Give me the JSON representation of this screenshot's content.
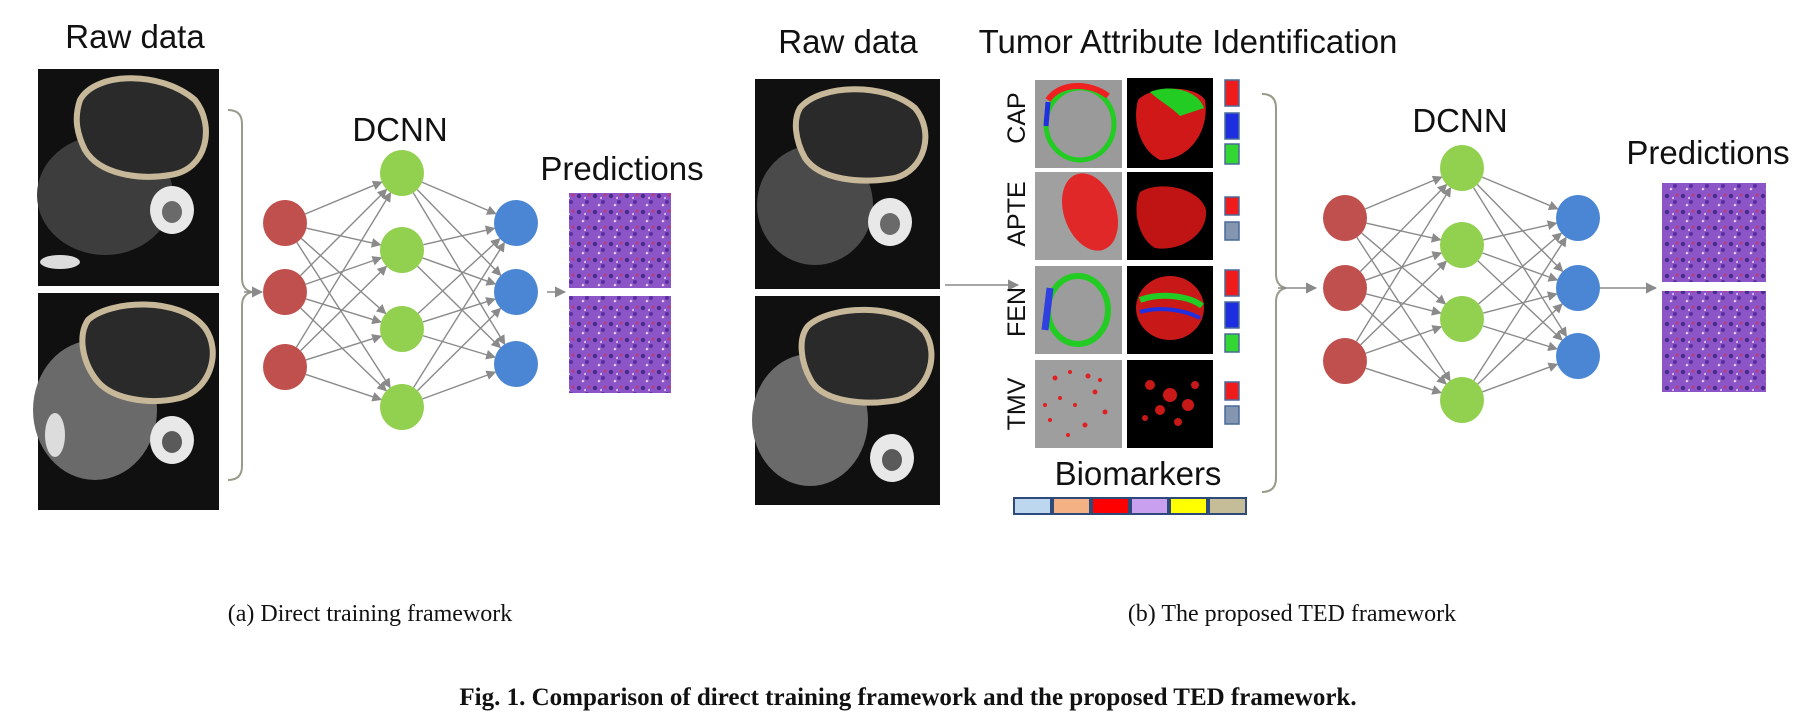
{
  "panel_a": {
    "raw_title": "Raw data",
    "dcnn_title": "DCNN",
    "pred_title": "Predictions",
    "caption": "(a)  Direct training framework"
  },
  "panel_b": {
    "raw_title": "Raw data",
    "attr_title": "Tumor Attribute Identification",
    "dcnn_title": "DCNN",
    "pred_title": "Predictions",
    "biomarkers_title": "Biomarkers",
    "caption": "(b)  The proposed TED framework",
    "attributes": [
      {
        "label": "CAP",
        "codes": [
          "+++",
          "++",
          "+"
        ]
      },
      {
        "label": "APTE",
        "codes": [
          "+",
          "-"
        ]
      },
      {
        "label": "FEN",
        "codes": [
          "+++",
          "++",
          "+"
        ]
      },
      {
        "label": "TMV",
        "codes": [
          "+",
          "-"
        ]
      }
    ]
  },
  "figure_caption": "Fig. 1. Comparison of direct training framework and the proposed TED framework.",
  "colors": {
    "input_node": "#c0504d",
    "hidden_node": "#92d050",
    "output_node": "#4a86d4",
    "tumor_outline": "#c8b89a",
    "histology": "#8b55c8",
    "code_red": "#ee1c1c",
    "code_blue": "#1c2ee0",
    "code_green": "#33d633",
    "code_gray": "#8496b0",
    "biomarker_bar": [
      "#bdd7ee",
      "#f4b183",
      "#ff0000",
      "#c9a0f0",
      "#ffff00",
      "#c4bd97"
    ]
  },
  "icons": [
    "ct-scan-image",
    "histology-image",
    "segmentation-slice",
    "3d-render",
    "grade-code"
  ]
}
